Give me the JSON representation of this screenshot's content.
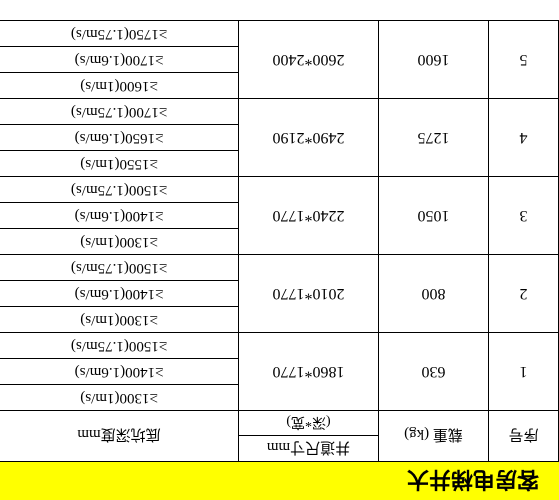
{
  "title": "客房电梯井大",
  "headers": {
    "seq": "序号",
    "load": "载重 (kg)",
    "shaft": "井道尺寸mm",
    "shaft_sub": "(深*宽)",
    "pit": "底坑深度mm"
  },
  "colors": {
    "title_bg": "#ffff00",
    "border": "#000000",
    "background": "#ffffff",
    "text": "#000000"
  },
  "font": {
    "family": "SimSun",
    "title_size": 22,
    "body_size": 15
  },
  "rows": [
    {
      "seq": "1",
      "load": "630",
      "shaft": "1860*1770",
      "depths": [
        "≥1300(1m/s)",
        "≥1400(1.6m/s)",
        "≥1500(1.75m/s)"
      ]
    },
    {
      "seq": "2",
      "load": "800",
      "shaft": "2010*1770",
      "depths": [
        "≥1300(1m/s)",
        "≥1400(1.6m/s)",
        "≥1500(1.75m/s)"
      ]
    },
    {
      "seq": "3",
      "load": "1050",
      "shaft": "2240*1770",
      "depths": [
        "≥1300(1m/s)",
        "≥1400(1.6m/s)",
        "≥1500(1.75m/s)"
      ]
    },
    {
      "seq": "4",
      "load": "1275",
      "shaft": "2490*2190",
      "depths": [
        "≥1550(1m/s)",
        "≥1650(1.6m/s)",
        "≥1700(1.75m/s)"
      ]
    },
    {
      "seq": "5",
      "load": "1600",
      "shaft": "2600*2400",
      "depths": [
        "≥1600(1m/s)",
        "≥1700(1.6m/s)",
        "≥1750(1.75m/s)"
      ]
    }
  ]
}
